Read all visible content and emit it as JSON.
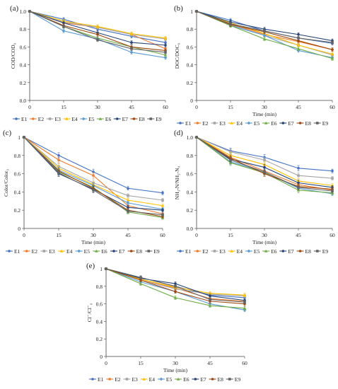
{
  "legend_colors": {
    "E1": "#4472c4",
    "E2": "#ed7d31",
    "E3": "#a5a5a5",
    "E4": "#ffc000",
    "E5": "#5b9bd5",
    "E6": "#70ad47",
    "E7": "#264478",
    "E8": "#9e480e",
    "E9": "#636363"
  },
  "chart_data": [
    {
      "panel": "(a)",
      "type": "line",
      "x": [
        0,
        15,
        30,
        45,
        60
      ],
      "xticks": [
        "0",
        "15",
        "30",
        "45",
        "60"
      ],
      "yticks": [
        "0.0",
        "0.2",
        "0.4",
        "0.6",
        "0.8",
        "1.0"
      ],
      "xlim": [
        0,
        60
      ],
      "ylim": [
        0,
        1.0
      ],
      "ylabel": "COD/COD₀",
      "xlabel": "",
      "grid": false,
      "legend": "bottom",
      "series": [
        {
          "name": "E1",
          "values": [
            1,
            0.91,
            0.8,
            0.72,
            0.65
          ],
          "err": [
            0,
            0.02,
            0.02,
            0.02,
            0.02
          ]
        },
        {
          "name": "E2",
          "values": [
            1,
            0.87,
            0.82,
            0.74,
            0.58
          ],
          "err": [
            0,
            0.02,
            0.02,
            0.02,
            0.02
          ]
        },
        {
          "name": "E3",
          "values": [
            1,
            0.88,
            0.82,
            0.74,
            0.69
          ],
          "err": [
            0,
            0.02,
            0.02,
            0.02,
            0.02
          ]
        },
        {
          "name": "E4",
          "values": [
            1,
            0.89,
            0.83,
            0.75,
            0.7
          ],
          "err": [
            0,
            0.02,
            0.02,
            0.02,
            0.02
          ]
        },
        {
          "name": "E5",
          "values": [
            1,
            0.78,
            0.69,
            0.54,
            0.48
          ],
          "err": [
            0,
            0.02,
            0.02,
            0.02,
            0.02
          ]
        },
        {
          "name": "E6",
          "values": [
            1,
            0.83,
            0.7,
            0.6,
            0.51
          ],
          "err": [
            0,
            0.02,
            0.02,
            0.02,
            0.02
          ]
        },
        {
          "name": "E7",
          "values": [
            1,
            0.87,
            0.76,
            0.65,
            0.62
          ],
          "err": [
            0,
            0.02,
            0.02,
            0.02,
            0.02
          ]
        },
        {
          "name": "E8",
          "values": [
            1,
            0.84,
            0.74,
            0.6,
            0.56
          ],
          "err": [
            0,
            0.02,
            0.02,
            0.02,
            0.02
          ]
        },
        {
          "name": "E9",
          "values": [
            1,
            0.83,
            0.68,
            0.58,
            0.54
          ],
          "err": [
            0,
            0.02,
            0.02,
            0.02,
            0.02
          ]
        }
      ]
    },
    {
      "panel": "(b)",
      "type": "line",
      "x": [
        0,
        15,
        30,
        45,
        60
      ],
      "xticks": [
        "0",
        "15",
        "30",
        "45",
        "60"
      ],
      "yticks": [
        "0",
        "0.2",
        "0.4",
        "0.6",
        "0.8",
        "1"
      ],
      "xlim": [
        0,
        60
      ],
      "ylim": [
        0,
        1.0
      ],
      "ylabel": "DOC/DOC₀",
      "xlabel": "Time (min)",
      "grid": false,
      "legend": "bottom",
      "series": [
        {
          "name": "E1",
          "values": [
            1,
            0.9,
            0.78,
            0.7,
            0.64
          ],
          "err": [
            0,
            0.02,
            0.02,
            0.02,
            0.02
          ]
        },
        {
          "name": "E2",
          "values": [
            1,
            0.86,
            0.74,
            0.66,
            0.57
          ],
          "err": [
            0,
            0.02,
            0.02,
            0.02,
            0.02
          ]
        },
        {
          "name": "E3",
          "values": [
            1,
            0.85,
            0.73,
            0.62,
            0.51
          ],
          "err": [
            0,
            0.02,
            0.02,
            0.02,
            0.02
          ]
        },
        {
          "name": "E4",
          "values": [
            1,
            0.87,
            0.75,
            0.62,
            0.52
          ],
          "err": [
            0,
            0.02,
            0.02,
            0.02,
            0.02
          ]
        },
        {
          "name": "E5",
          "values": [
            1,
            0.84,
            0.73,
            0.56,
            0.48
          ],
          "err": [
            0,
            0.02,
            0.02,
            0.02,
            0.02
          ]
        },
        {
          "name": "E6",
          "values": [
            1,
            0.84,
            0.69,
            0.58,
            0.47
          ],
          "err": [
            0,
            0.02,
            0.02,
            0.02,
            0.02
          ]
        },
        {
          "name": "E7",
          "values": [
            1,
            0.88,
            0.8,
            0.74,
            0.67
          ],
          "err": [
            0,
            0.02,
            0.02,
            0.02,
            0.02
          ]
        },
        {
          "name": "E8",
          "values": [
            1,
            0.85,
            0.77,
            0.67,
            0.57
          ],
          "err": [
            0,
            0.02,
            0.02,
            0.02,
            0.02
          ]
        },
        {
          "name": "E9",
          "values": [
            1,
            0.86,
            0.78,
            0.7,
            0.65
          ],
          "err": [
            0,
            0.02,
            0.02,
            0.02,
            0.02
          ]
        }
      ]
    },
    {
      "panel": "(c)",
      "type": "line",
      "x": [
        0,
        15,
        30,
        45,
        60
      ],
      "xticks": [
        "0",
        "15",
        "30",
        "45",
        "60"
      ],
      "yticks": [
        "0",
        "0.2",
        "0.4",
        "0.6",
        "0.8",
        "1"
      ],
      "xlim": [
        0,
        60
      ],
      "ylim": [
        0,
        1.0
      ],
      "ylabel": "Color/Color₀",
      "xlabel": "Time (min)",
      "grid": false,
      "legend": "bottom",
      "series": [
        {
          "name": "E1",
          "values": [
            1,
            0.8,
            0.62,
            0.44,
            0.39
          ],
          "err": [
            0,
            0.03,
            0.03,
            0.02,
            0.02
          ]
        },
        {
          "name": "E2",
          "values": [
            1,
            0.75,
            0.58,
            0.25,
            0.16
          ],
          "err": [
            0,
            0.03,
            0.03,
            0.02,
            0.02
          ]
        },
        {
          "name": "E3",
          "values": [
            1,
            0.68,
            0.5,
            0.36,
            0.31
          ],
          "err": [
            0,
            0.03,
            0.03,
            0.02,
            0.02
          ]
        },
        {
          "name": "E4",
          "values": [
            1,
            0.66,
            0.48,
            0.31,
            0.25
          ],
          "err": [
            0,
            0.03,
            0.03,
            0.02,
            0.02
          ]
        },
        {
          "name": "E5",
          "values": [
            1,
            0.64,
            0.47,
            0.28,
            0.21
          ],
          "err": [
            0,
            0.03,
            0.03,
            0.02,
            0.02
          ]
        },
        {
          "name": "E6",
          "values": [
            1,
            0.62,
            0.45,
            0.18,
            0.12
          ],
          "err": [
            0,
            0.03,
            0.03,
            0.02,
            0.02
          ]
        },
        {
          "name": "E7",
          "values": [
            1,
            0.6,
            0.43,
            0.23,
            0.2
          ],
          "err": [
            0,
            0.03,
            0.03,
            0.02,
            0.02
          ]
        },
        {
          "name": "E8",
          "values": [
            1,
            0.63,
            0.44,
            0.2,
            0.13
          ],
          "err": [
            0,
            0.03,
            0.03,
            0.02,
            0.02
          ]
        },
        {
          "name": "E9",
          "values": [
            1,
            0.61,
            0.42,
            0.19,
            0.15
          ],
          "err": [
            0,
            0.03,
            0.03,
            0.02,
            0.02
          ]
        }
      ]
    },
    {
      "panel": "(d)",
      "type": "line",
      "x": [
        0,
        15,
        30,
        45,
        60
      ],
      "xticks": [
        "0",
        "15",
        "30",
        "45",
        "60"
      ],
      "yticks": [
        "0.0",
        "0.2",
        "0.4",
        "0.6",
        "0.8",
        "1.0"
      ],
      "xlim": [
        0,
        60
      ],
      "ylim": [
        0,
        1.0
      ],
      "ylabel": "NH₃-N/NH₃-N₀",
      "xlabel": "Time (min)",
      "grid": false,
      "legend": "bottom",
      "series": [
        {
          "name": "E1",
          "values": [
            1,
            0.85,
            0.78,
            0.66,
            0.63
          ],
          "err": [
            0,
            0.03,
            0.03,
            0.03,
            0.02
          ]
        },
        {
          "name": "E2",
          "values": [
            1,
            0.78,
            0.63,
            0.48,
            0.42
          ],
          "err": [
            0,
            0.03,
            0.03,
            0.03,
            0.02
          ]
        },
        {
          "name": "E3",
          "values": [
            1,
            0.84,
            0.75,
            0.58,
            0.55
          ],
          "err": [
            0,
            0.03,
            0.03,
            0.03,
            0.02
          ]
        },
        {
          "name": "E4",
          "values": [
            1,
            0.8,
            0.7,
            0.52,
            0.47
          ],
          "err": [
            0,
            0.03,
            0.03,
            0.03,
            0.02
          ]
        },
        {
          "name": "E5",
          "values": [
            1,
            0.73,
            0.62,
            0.44,
            0.38
          ],
          "err": [
            0,
            0.03,
            0.03,
            0.03,
            0.02
          ]
        },
        {
          "name": "E6",
          "values": [
            1,
            0.72,
            0.61,
            0.42,
            0.39
          ],
          "err": [
            0,
            0.03,
            0.03,
            0.03,
            0.02
          ]
        },
        {
          "name": "E7",
          "values": [
            1,
            0.76,
            0.67,
            0.5,
            0.45
          ],
          "err": [
            0,
            0.03,
            0.03,
            0.03,
            0.02
          ]
        },
        {
          "name": "E8",
          "values": [
            1,
            0.77,
            0.6,
            0.46,
            0.43
          ],
          "err": [
            0,
            0.03,
            0.03,
            0.03,
            0.02
          ]
        },
        {
          "name": "E9",
          "values": [
            1,
            0.75,
            0.62,
            0.45,
            0.41
          ],
          "err": [
            0,
            0.03,
            0.03,
            0.03,
            0.02
          ]
        }
      ]
    },
    {
      "panel": "(e)",
      "type": "line",
      "x": [
        0,
        15,
        30,
        45,
        60
      ],
      "xticks": [
        "0",
        "15",
        "30",
        "45",
        "60"
      ],
      "yticks": [
        "0",
        "0.2",
        "0.4",
        "0.6",
        "0.8",
        "1"
      ],
      "xlim": [
        0,
        60
      ],
      "ylim": [
        0,
        1.0
      ],
      "ylabel": "Cl⁻/Cl⁻₀",
      "xlabel": "Time (min)",
      "grid": false,
      "legend": "bottom",
      "series": [
        {
          "name": "E1",
          "values": [
            1,
            0.9,
            0.8,
            0.7,
            0.67
          ],
          "err": [
            0,
            0.02,
            0.02,
            0.02,
            0.02
          ]
        },
        {
          "name": "E2",
          "values": [
            1,
            0.88,
            0.78,
            0.66,
            0.63
          ],
          "err": [
            0,
            0.02,
            0.02,
            0.02,
            0.02
          ]
        },
        {
          "name": "E3",
          "values": [
            1,
            0.87,
            0.77,
            0.71,
            0.69
          ],
          "err": [
            0,
            0.02,
            0.02,
            0.02,
            0.02
          ]
        },
        {
          "name": "E4",
          "values": [
            1,
            0.88,
            0.79,
            0.72,
            0.7
          ],
          "err": [
            0,
            0.02,
            0.02,
            0.02,
            0.02
          ]
        },
        {
          "name": "E5",
          "values": [
            1,
            0.85,
            0.74,
            0.6,
            0.53
          ],
          "err": [
            0,
            0.02,
            0.02,
            0.02,
            0.02
          ]
        },
        {
          "name": "E6",
          "values": [
            1,
            0.83,
            0.67,
            0.58,
            0.55
          ],
          "err": [
            0,
            0.02,
            0.02,
            0.02,
            0.02
          ]
        },
        {
          "name": "E7",
          "values": [
            1,
            0.89,
            0.83,
            0.69,
            0.64
          ],
          "err": [
            0,
            0.02,
            0.02,
            0.02,
            0.02
          ]
        },
        {
          "name": "E8",
          "values": [
            1,
            0.87,
            0.74,
            0.63,
            0.6
          ],
          "err": [
            0,
            0.02,
            0.02,
            0.02,
            0.02
          ]
        },
        {
          "name": "E9",
          "values": [
            1,
            0.9,
            0.8,
            0.65,
            0.62
          ],
          "err": [
            0,
            0.02,
            0.02,
            0.02,
            0.02
          ]
        }
      ]
    }
  ]
}
